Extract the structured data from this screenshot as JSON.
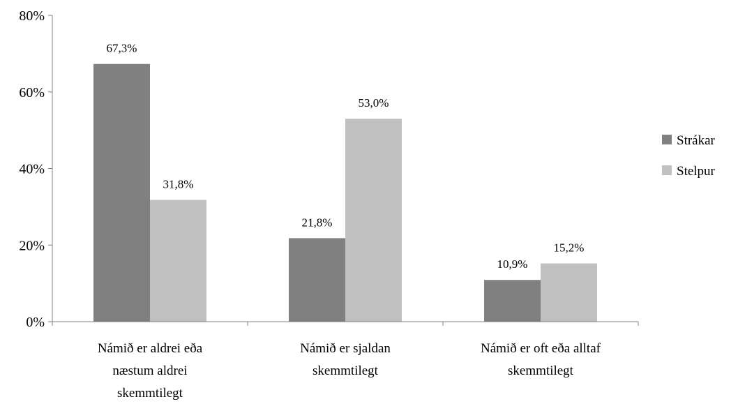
{
  "chart_data": {
    "type": "bar",
    "title": "",
    "xlabel": "",
    "ylabel": "",
    "ylim": [
      0,
      80
    ],
    "y_ticks": [
      "0%",
      "20%",
      "40%",
      "60%",
      "80%"
    ],
    "y_tick_values": [
      0,
      20,
      40,
      60,
      80
    ],
    "grid": false,
    "legend_position": "right",
    "categories": [
      [
        "Námið er aldrei eða",
        "næstum aldrei",
        "skemmtilegt"
      ],
      [
        "Námið er sjaldan",
        "skemmtilegt"
      ],
      [
        "Námið er oft eða alltaf",
        "skemmtilegt"
      ]
    ],
    "series": [
      {
        "name": "Strákar",
        "color": "#808080",
        "values": [
          67.3,
          21.8,
          10.9
        ],
        "labels": [
          "67,3%",
          "21,8%",
          "10,9%"
        ]
      },
      {
        "name": "Stelpur",
        "color": "#c0c0c0",
        "values": [
          31.8,
          53.0,
          15.2
        ],
        "labels": [
          "31,8%",
          "53,0%",
          "15,2%"
        ]
      }
    ]
  }
}
